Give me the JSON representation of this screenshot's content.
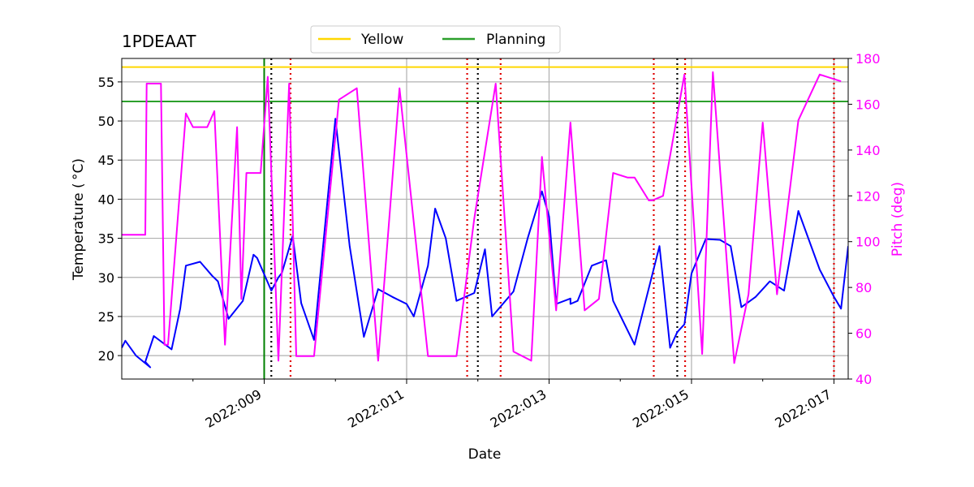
{
  "chart_data": {
    "type": "line",
    "title": "1PDEAAT",
    "xlabel": "Date",
    "ylabel": "Temperature ($^\\circ$C)",
    "ylabel_display": "Temperature ( °C)",
    "y2label": "Pitch (deg)",
    "xlim": [
      2022.007,
      2022.0172
    ],
    "ylim": [
      17,
      58
    ],
    "y2lim": [
      40,
      180
    ],
    "xticks": [
      {
        "value": 2022.009,
        "label": "2022:009"
      },
      {
        "value": 2022.011,
        "label": "2022:011"
      },
      {
        "value": 2022.013,
        "label": "2022:013"
      },
      {
        "value": 2022.015,
        "label": "2022:015"
      },
      {
        "value": 2022.017,
        "label": "2022:017"
      }
    ],
    "xminor": [
      2022.008,
      2022.01,
      2022.012,
      2022.014,
      2022.016
    ],
    "yticks": [
      20,
      25,
      30,
      35,
      40,
      45,
      50,
      55
    ],
    "y2ticks": [
      40,
      60,
      80,
      100,
      120,
      140,
      160,
      180
    ],
    "grid": true,
    "legend": {
      "position": "top-center",
      "entries": [
        {
          "name": "Yellow",
          "color": "#ffd700"
        },
        {
          "name": "Planning",
          "color": "#2ca02c"
        }
      ]
    },
    "limits": [
      {
        "name": "Yellow",
        "value": 56.9,
        "color": "#ffd700"
      },
      {
        "name": "Planning",
        "value": 52.5,
        "color": "#2ca02c"
      }
    ],
    "planning_marker_x": 2022.009,
    "black_dotted_x": [
      2022.0091,
      2022.012,
      2022.0148
    ],
    "red_dotted_x": [
      2022.00937,
      2022.01185,
      2022.01232,
      2022.01447,
      2022.01491,
      2022.017
    ],
    "series": [
      {
        "name": "Temperature",
        "axis": "left",
        "color": "#0000ff",
        "x": [
          2022.007,
          2022.00705,
          2022.0072,
          2022.0074,
          2022.00733,
          2022.00745,
          2022.0077,
          2022.00782,
          2022.0079,
          2022.0081,
          2022.00827,
          2022.00835,
          2022.0085,
          2022.0087,
          2022.00885,
          2022.0089,
          2022.0091,
          2022.0092,
          2022.00925,
          2022.0094,
          2022.00952,
          2022.0097,
          2022.01,
          2022.0102,
          2022.0104,
          2022.0106,
          2022.0108,
          2022.011,
          2022.0111,
          2022.0113,
          2022.0114,
          2022.01155,
          2022.0117,
          2022.01195,
          2022.0121,
          2022.0122,
          2022.0125,
          2022.0127,
          2022.0129,
          2022.013,
          2022.0131,
          2022.0133,
          2022.0133,
          2022.0134,
          2022.0136,
          2022.0138,
          2022.0139,
          2022.0142,
          2022.01455,
          2022.0147,
          2022.0148,
          2022.0149,
          2022.015,
          2022.0152,
          2022.0154,
          2022.01555,
          2022.0157,
          2022.0159,
          2022.0161,
          2022.0163,
          2022.0165,
          2022.0168,
          2022.017,
          2022.0171,
          2022.0172
        ],
        "y": [
          21.0,
          21.9,
          20.0,
          18.5,
          19.2,
          22.5,
          20.8,
          26.0,
          31.5,
          32.0,
          30.2,
          29.5,
          24.7,
          27.0,
          32.9,
          32.5,
          28.3,
          30.0,
          30.6,
          35.3,
          26.7,
          22.0,
          50.3,
          34.0,
          22.4,
          28.5,
          27.5,
          26.6,
          25.0,
          31.5,
          38.8,
          35.0,
          27.0,
          28.0,
          33.6,
          25.0,
          28.2,
          35.0,
          41.0,
          37.8,
          26.6,
          27.3,
          26.6,
          27.0,
          31.5,
          32.2,
          27.0,
          21.4,
          34.0,
          21.0,
          23.0,
          24.0,
          30.5,
          34.9,
          34.8,
          34.0,
          26.2,
          27.5,
          29.5,
          28.3,
          38.5,
          31.0,
          27.5,
          26.0,
          34.0
        ]
      },
      {
        "name": "Pitch",
        "axis": "right",
        "color": "#ff00ff",
        "x": [
          2022.007,
          2022.00733,
          2022.00735,
          2022.00755,
          2022.0076,
          2022.00765,
          2022.0079,
          2022.008,
          2022.0082,
          2022.0083,
          2022.00845,
          2022.00862,
          2022.00868,
          2022.00875,
          2022.0088,
          2022.00895,
          2022.00905,
          2022.0092,
          2022.00935,
          2022.00945,
          2022.0097,
          2022.01005,
          2022.0103,
          2022.0106,
          2022.0109,
          2022.0113,
          2022.0117,
          2022.01195,
          2022.01225,
          2022.0125,
          2022.01275,
          2022.0129,
          2022.0131,
          2022.0133,
          2022.0135,
          2022.0137,
          2022.0139,
          2022.0141,
          2022.0142,
          2022.0144,
          2022.01445,
          2022.0146,
          2022.0149,
          2022.01515,
          2022.0153,
          2022.0156,
          2022.0158,
          2022.016,
          2022.0162,
          2022.0165,
          2022.0168,
          2022.0171
        ],
        "y": [
          103,
          103,
          169,
          169,
          55,
          55,
          156,
          150,
          150,
          157,
          55,
          150,
          75,
          130,
          130,
          130,
          172,
          48,
          169,
          50,
          50,
          162,
          167,
          48,
          167,
          50,
          50,
          110,
          169,
          52,
          48,
          137,
          70,
          152,
          70,
          75,
          130,
          128,
          128,
          118,
          118,
          120,
          173,
          51,
          174,
          47,
          77,
          152,
          77,
          153,
          173,
          170
        ]
      }
    ]
  }
}
